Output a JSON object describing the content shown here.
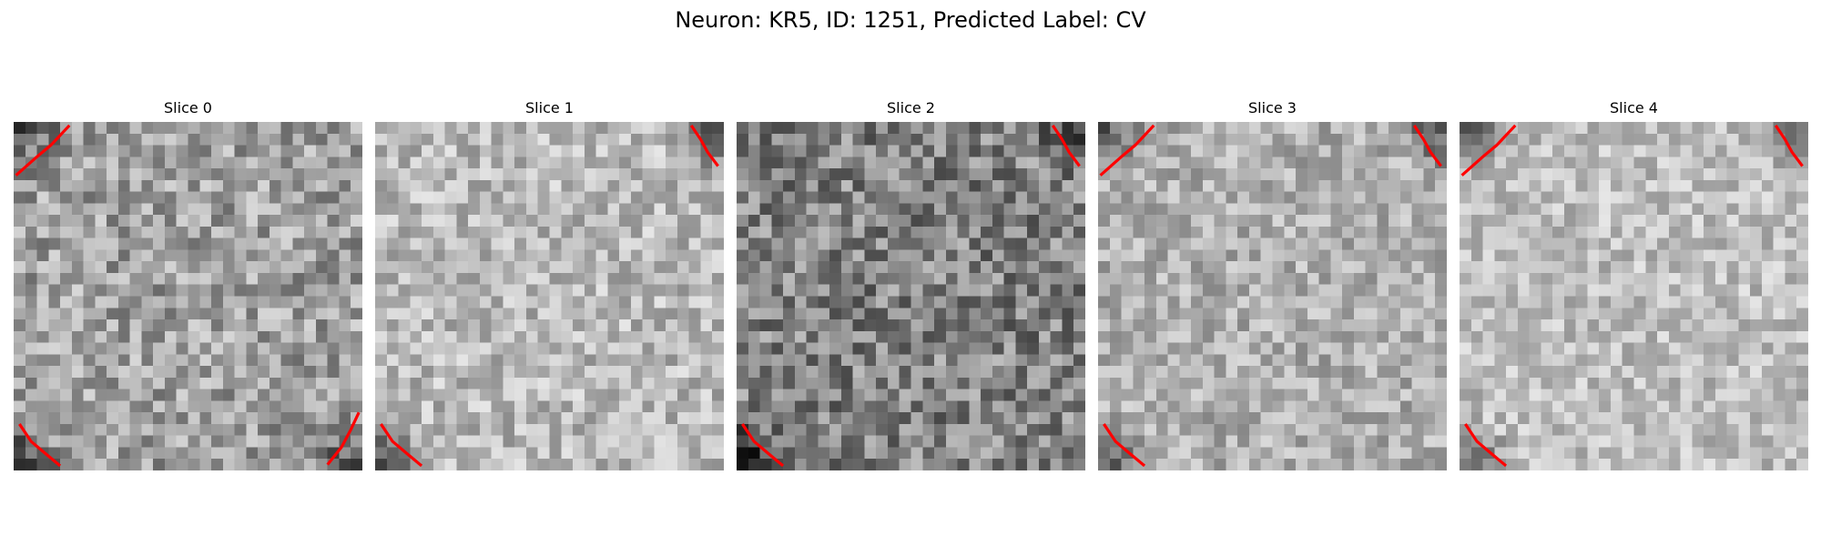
{
  "figure": {
    "title": "Neuron: KR5, ID: 1251, Predicted Label: CV"
  },
  "panels": [
    {
      "title": "Slice 0",
      "base": 160,
      "spread": 110,
      "seed": 11,
      "dark_corners": [
        "tl",
        "bl",
        "br"
      ],
      "contour_color": "#ff0000"
    },
    {
      "title": "Slice 1",
      "base": 185,
      "spread": 90,
      "seed": 23,
      "dark_corners": [
        "tr",
        "bl"
      ],
      "contour_color": "#ff0000"
    },
    {
      "title": "Slice 2",
      "base": 130,
      "spread": 120,
      "seed": 37,
      "dark_corners": [
        "tr",
        "bl"
      ],
      "contour_color": "#ff0000"
    },
    {
      "title": "Slice 3",
      "base": 175,
      "spread": 85,
      "seed": 41,
      "dark_corners": [
        "tl",
        "tr",
        "bl"
      ],
      "contour_color": "#ff0000"
    },
    {
      "title": "Slice 4",
      "base": 190,
      "spread": 80,
      "seed": 53,
      "dark_corners": [
        "tl",
        "tr",
        "bl"
      ],
      "contour_color": "#ff0000"
    }
  ]
}
